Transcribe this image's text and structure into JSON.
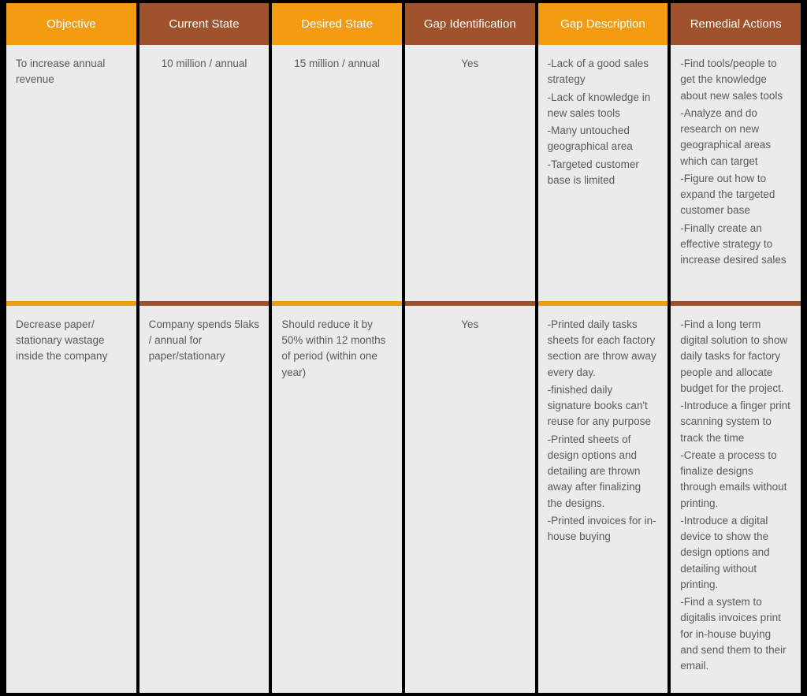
{
  "colors": {
    "orange": "#f39c12",
    "brown": "#a0522d",
    "cell_bg": "#ebebeb",
    "page_bg": "#000000",
    "text": "#5a5a5a",
    "header_text": "#ffffff"
  },
  "typography": {
    "header_fontsize": 15,
    "body_fontsize": 13.5,
    "font_family": "Segoe UI"
  },
  "layout": {
    "columns": 6,
    "spacing": 4
  },
  "headers": [
    {
      "label": "Objective",
      "color": "orange"
    },
    {
      "label": "Current State",
      "color": "brown"
    },
    {
      "label": "Desired State",
      "color": "orange"
    },
    {
      "label": "Gap Identification",
      "color": "brown"
    },
    {
      "label": "Gap Description",
      "color": "orange"
    },
    {
      "label": "Remedial Actions",
      "color": "brown"
    }
  ],
  "rows": [
    {
      "objective": "To increase annual revenue",
      "current_state": "10 million / annual",
      "desired_state": "15 million / annual",
      "gap_identification": "Yes",
      "gap_description": [
        "-Lack of a good sales strategy",
        "-Lack of knowledge in new sales tools",
        "-Many untouched geographical area",
        "-Targeted customer base is limited"
      ],
      "remedial_actions": [
        "-Find tools/people to get the knowledge about new sales tools",
        "-Analyze and do research on new geographical areas which can target",
        "-Figure out how to expand the targeted customer base",
        "-Finally create an effective strategy to increase desired sales"
      ]
    },
    {
      "objective": "Decrease paper/ stationary wastage inside the company",
      "current_state": "Company spends 5laks / annual for paper/stationary",
      "desired_state": "Should reduce it by 50% within 12 months of period (within one year)",
      "gap_identification": "Yes",
      "gap_description": [
        "-Printed daily tasks sheets for each factory section are throw away every day.",
        "-finished daily signature books can't reuse for any purpose",
        "-Printed sheets of design options and detailing are thrown away after finalizing the designs.",
        "-Printed invoices for in-house buying"
      ],
      "remedial_actions": [
        "-Find a long term digital solution to show daily tasks for factory people and allocate budget for the project.",
        "-Introduce a finger print scanning system to track the time",
        "-Create a process to finalize designs through emails without printing.",
        "-Introduce a digital device to show the design options and detailing without printing.",
        "-Find a system to digitalis invoices print for in-house buying and send them to their email."
      ]
    }
  ]
}
